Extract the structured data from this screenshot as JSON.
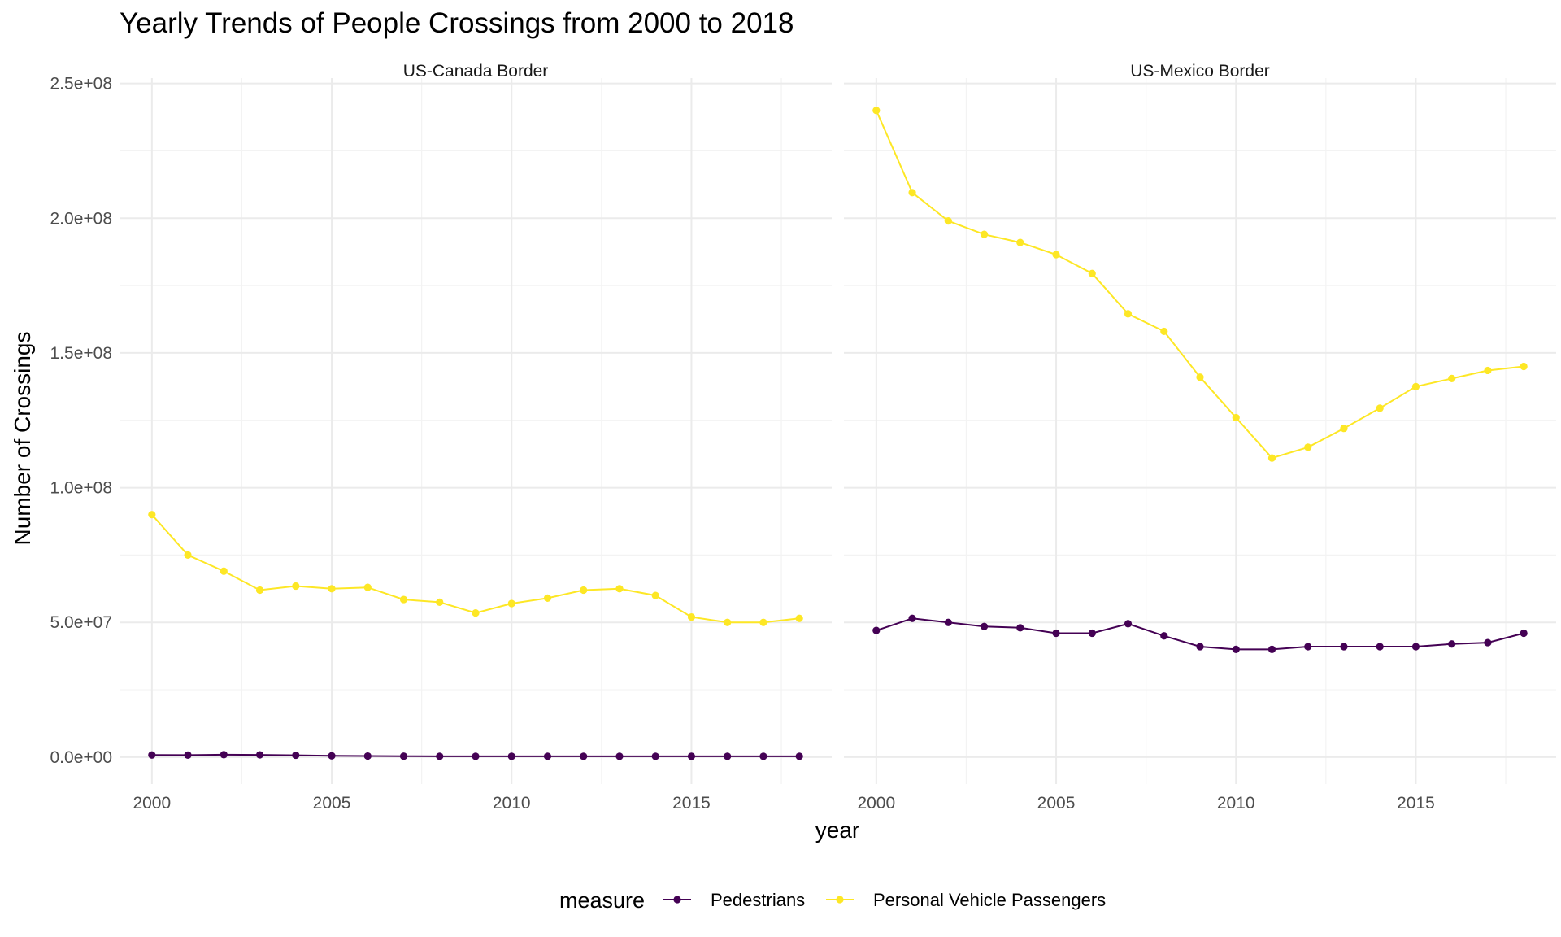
{
  "chart_data": {
    "type": "line",
    "title": "Yearly Trends of People Crossings from 2000 to 2018",
    "xlabel": "year",
    "ylabel": "Number of Crossings",
    "ylim": [
      -10000000,
      252000000
    ],
    "xlim": [
      1999.1,
      2018.9
    ],
    "yticks": [
      0,
      50000000,
      100000000,
      150000000,
      200000000,
      250000000
    ],
    "ytick_labels": [
      "0.0e+00",
      "5.0e+07",
      "1.0e+08",
      "1.5e+08",
      "2.0e+08",
      "2.5e+08"
    ],
    "xticks": [
      2000,
      2005,
      2010,
      2015
    ],
    "xtick_labels": [
      "2000",
      "2005",
      "2010",
      "2015"
    ],
    "grid": true,
    "legend": {
      "title": "measure",
      "position": "bottom",
      "entries": [
        {
          "name": "Pedestrians",
          "color": "#440154"
        },
        {
          "name": "Personal Vehicle Passengers",
          "color": "#FDE725"
        }
      ]
    },
    "x": [
      2000,
      2001,
      2002,
      2003,
      2004,
      2005,
      2006,
      2007,
      2008,
      2009,
      2010,
      2011,
      2012,
      2013,
      2014,
      2015,
      2016,
      2017,
      2018
    ],
    "panels": [
      {
        "name": "US-Canada Border",
        "series": [
          {
            "name": "Pedestrians",
            "color": "#440154",
            "values": [
              800000,
              750000,
              900000,
              850000,
              700000,
              500000,
              400000,
              350000,
              300000,
              300000,
              300000,
              300000,
              300000,
              300000,
              300000,
              300000,
              300000,
              300000,
              300000
            ]
          },
          {
            "name": "Personal Vehicle Passengers",
            "color": "#FDE725",
            "values": [
              90000000,
              75000000,
              69000000,
              62000000,
              63500000,
              62500000,
              63000000,
              58500000,
              57500000,
              53500000,
              57000000,
              59000000,
              62000000,
              62500000,
              60000000,
              52000000,
              50000000,
              50000000,
              51500000
            ]
          }
        ]
      },
      {
        "name": "US-Mexico Border",
        "series": [
          {
            "name": "Pedestrians",
            "color": "#440154",
            "values": [
              47000000,
              51500000,
              50000000,
              48500000,
              48000000,
              46000000,
              46000000,
              49500000,
              45000000,
              41000000,
              40000000,
              40000000,
              41000000,
              41000000,
              41000000,
              41000000,
              42000000,
              42500000,
              46000000
            ]
          },
          {
            "name": "Personal Vehicle Passengers",
            "color": "#FDE725",
            "values": [
              240000000,
              209500000,
              199000000,
              194000000,
              191000000,
              186500000,
              179500000,
              164500000,
              158000000,
              141000000,
              126000000,
              111000000,
              115000000,
              122000000,
              129500000,
              137500000,
              140500000,
              143500000,
              145000000
            ]
          }
        ]
      }
    ]
  }
}
